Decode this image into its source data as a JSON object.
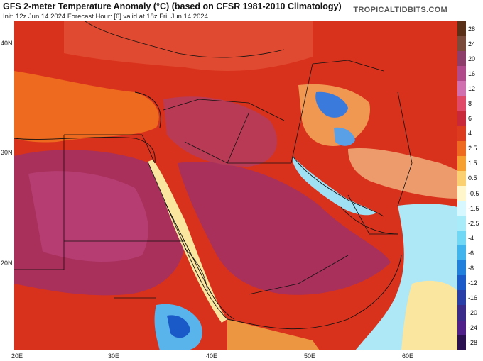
{
  "header": {
    "title": "GFS 2-meter Temperature Anomaly (°C) (based on CFSR 1981-2010 Climatology)",
    "subtitle": "Init: 12z Jun 14 2024   Forecast Hour: [6]   valid at 18z Fri, Jun 14 2024",
    "brand": "TROPICALTIDBITS.COM"
  },
  "map": {
    "lat_labels": [
      "40N",
      "30N",
      "20N"
    ],
    "lon_labels": [
      "20E",
      "30E",
      "40E",
      "50E",
      "60E"
    ]
  },
  "colorbar": {
    "labels": [
      "28",
      "24",
      "20",
      "16",
      "12",
      "8",
      "6",
      "4",
      "2.5",
      "1.5",
      "0.5",
      "-0.5",
      "-1.5",
      "-2.5",
      "-4",
      "-6",
      "-8",
      "-12",
      "-16",
      "-20",
      "-24",
      "-28"
    ],
    "colors": [
      "#5a3018",
      "#7a4a3a",
      "#8e3e6a",
      "#b04a8a",
      "#d070b0",
      "#e04a68",
      "#c8283a",
      "#dd3b1e",
      "#ee6a1e",
      "#f5a030",
      "#fbd070",
      "#fff6cc",
      "#d8f8ff",
      "#a8ecfa",
      "#70d8f4",
      "#40b4ec",
      "#2080dc",
      "#1a5ac8",
      "#2a3ea8",
      "#3a2a8a",
      "#50208a",
      "#2a1050"
    ]
  },
  "colors": {
    "land_base": "#d9321c",
    "hot": "#a8305a",
    "water_cool": "#aee7f5",
    "border": "#111111"
  }
}
